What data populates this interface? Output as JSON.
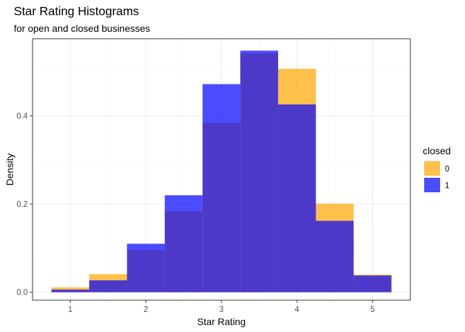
{
  "chart_data": {
    "type": "bar",
    "title": "Star Rating Histograms",
    "subtitle": "for open and closed businesses",
    "xlabel": "Star Rating",
    "ylabel": "Density",
    "xlim": [
      0.5,
      5.5
    ],
    "ylim": [
      -0.018,
      0.575
    ],
    "x_ticks": [
      1,
      2,
      3,
      4,
      5
    ],
    "y_ticks": [
      0.0,
      0.2,
      0.4
    ],
    "y_tick_labels": [
      "0.0",
      "0.2",
      "0.4"
    ],
    "bin_width": 0.5,
    "bin_centers": [
      1.0,
      1.5,
      2.0,
      2.5,
      3.0,
      3.5,
      4.0,
      4.5,
      5.0
    ],
    "grid": true,
    "legend_position": "right",
    "legend_title": "closed",
    "series": [
      {
        "name": "0",
        "color": "#FFA500",
        "alpha": 0.7,
        "values": [
          0.011,
          0.041,
          0.096,
          0.184,
          0.384,
          0.542,
          0.507,
          0.201,
          0.04
        ]
      },
      {
        "name": "1",
        "color": "#0000FF",
        "alpha": 0.7,
        "values": [
          0.006,
          0.027,
          0.11,
          0.22,
          0.472,
          0.548,
          0.426,
          0.162,
          0.038
        ]
      }
    ]
  }
}
